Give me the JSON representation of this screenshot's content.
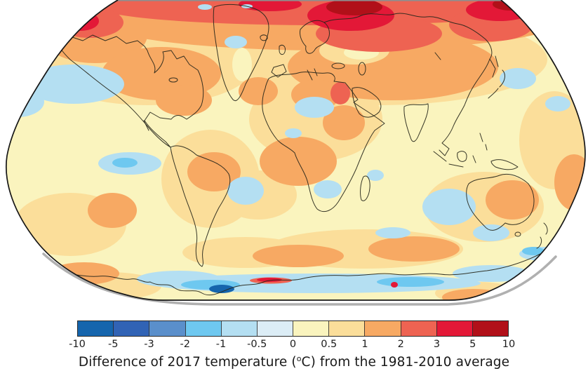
{
  "figure": {
    "kind": "temperature-anomaly-world-map",
    "background_color": "#ffffff"
  },
  "caption": {
    "part1": "Difference of 2017 temperature (",
    "degree": "o",
    "part2": "C) from the 1981-2010 average",
    "full": "Difference of 2017 temperature (°C) from the 1981-2010 average"
  },
  "chart_data": {
    "type": "heatmap",
    "subtype": "filled-contour-anomaly-map",
    "projection": "Robinson world map (cropped at top corners)",
    "title": "",
    "caption": "Difference of 2017 temperature (°C) from the 1981-2010 average",
    "units": "°C",
    "legend_position": "bottom",
    "anomaly_scale": {
      "tick_labels": [
        "-10",
        "-5",
        "-3",
        "-2",
        "-1",
        "-0.5",
        "0",
        "0.5",
        "1",
        "2",
        "3",
        "5",
        "10"
      ],
      "tick_values": [
        -10,
        -5,
        -3,
        -2,
        -1,
        -0.5,
        0,
        0.5,
        1,
        2,
        3,
        5,
        10
      ],
      "segment_colors": [
        "#1565AD",
        "#3163B5",
        "#5A8FCB",
        "#6EC8F0",
        "#B4DFF2",
        "#DCEDF6",
        "#FAF4BE",
        "#FBDE9A",
        "#F7A963",
        "#EE6352",
        "#E31837",
        "#B11019"
      ],
      "outline_color": "#2b2b2b"
    },
    "notable_features": [
      {
        "region": "Arctic Ocean / Barents-Kara seas",
        "anomaly_c": "+5 to +10"
      },
      {
        "region": "East Siberian / Chukchi Arctic coast",
        "anomaly_c": "+5 to +10"
      },
      {
        "region": "Bering Strait / western Alaska",
        "anomaly_c": "+3 to +5"
      },
      {
        "region": "High-latitude Northern Hemisphere band",
        "anomaly_c": "+1 to +3"
      },
      {
        "region": "Northern mid-latitude continents (N. America, Eurasia)",
        "anomaly_c": "+1 to +2"
      },
      {
        "region": "Tropical land and oceans",
        "anomaly_c": "0 to +1"
      },
      {
        "region": "Northeast Pacific",
        "anomaly_c": "-1 to -0.5"
      },
      {
        "region": "Equatorial eastern Pacific",
        "anomaly_c": "-1 to -0.5"
      },
      {
        "region": "Central Sahara patch",
        "anomaly_c": "-1 to -0.5"
      },
      {
        "region": "Ocean west of Australia",
        "anomaly_c": "-1 to -0.5"
      },
      {
        "region": "Southern Ocean / coastal East Antarctica band",
        "anomaly_c": "-2 to -1"
      },
      {
        "region": "Spot near Antarctic Peninsula / Weddell sector",
        "anomaly_c": "-10 to -5"
      },
      {
        "region": "Ross Sea coastal streak",
        "anomaly_c": "+3 to +10"
      }
    ]
  }
}
